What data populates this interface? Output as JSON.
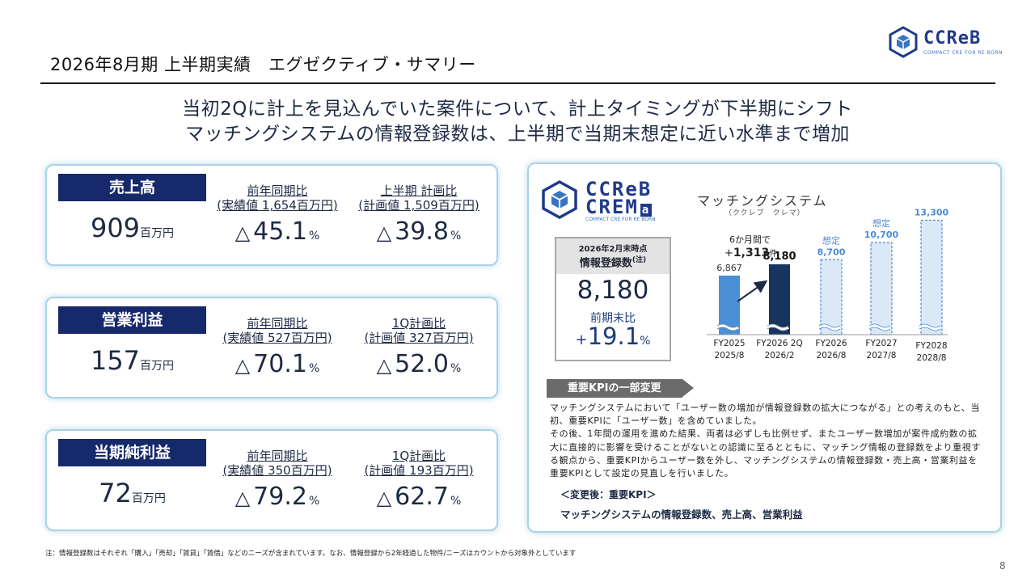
{
  "header": {
    "title": "2026年8月期 上半期実績　エグゼクティブ・サマリー",
    "logo_word": "CCReB",
    "logo_tagline": "COMPACT CRE FOR RE BORN"
  },
  "headline": {
    "line1": "当初2Qに計上を見込んでいた案件について、計上タイミングが下半期にシフト",
    "line2": "マッチングシステムの情報登録数は、上半期で当期末想定に近い水準まで増加"
  },
  "kpis": [
    {
      "label": "売上高",
      "value": "909",
      "unit": "百万円",
      "yoy_label1": "前年同期比",
      "yoy_label2": "(実績値 1,654百万円)",
      "yoy_symbol": "△",
      "yoy_value": "45.1",
      "yoy_unit": "%",
      "plan_label1": "上半期 計画比",
      "plan_label2": "(計画値 1,509百万円)",
      "plan_symbol": "△",
      "plan_value": "39.8",
      "plan_unit": "%"
    },
    {
      "label": "営業利益",
      "value": "157",
      "unit": "百万円",
      "yoy_label1": "前年同期比",
      "yoy_label2": "(実績値 527百万円)",
      "yoy_symbol": "△",
      "yoy_value": "70.1",
      "yoy_unit": "%",
      "plan_label1": "1Q計画比",
      "plan_label2": "(計画値 327百万円)",
      "plan_symbol": "△",
      "plan_value": "52.0",
      "plan_unit": "%"
    },
    {
      "label": "当期純利益",
      "value": "72",
      "unit": "百万円",
      "yoy_label1": "前年同期比",
      "yoy_label2": "(実績値 350百万円)",
      "yoy_symbol": "△",
      "yoy_value": "79.2",
      "yoy_unit": "%",
      "plan_label1": "1Q計画比",
      "plan_label2": "(計画値 193百万円)",
      "plan_symbol": "△",
      "plan_value": "62.7",
      "plan_unit": "%"
    }
  ],
  "panel": {
    "logo_line1": "CCReB",
    "logo_line2": "CREM",
    "logo_line2_small": "a",
    "logo_tagline": "COMPACT CRE FOR RE BORN",
    "system_title": "マッチングシステム",
    "system_reading": "（ククレブ　クレマ）",
    "reg_date": "2026年2月末時点",
    "reg_label": "情報登録数",
    "reg_note": "(注)",
    "reg_value": "8,180",
    "reg_prev_label": "前期末比",
    "reg_growth_sign": "+",
    "reg_growth_value": "19.1",
    "reg_growth_unit": "%",
    "kpi_tag": "重要KPIの一部変更",
    "kpi_body": "マッチングシステムにおいて「ユーザー数の増加が情報登録数の拡大につながる」との考えのもと、当初、重要KPIに「ユーザー数」を含めていました。\nその後、1年間の運用を進めた結果、両者は必ずしも比例せず、またユーザー数増加が案件成約数の拡大に直接的に影響を受けることがないとの認識に至るとともに、マッチング情報の登録数をより重視する観点から、重要KPIからユーザー数を外し、マッチングシステムの情報登録数・売上高・営業利益を重要KPIとして設定の見直しを行いました。",
    "kpi_after_label": "＜変更後：重要KPI＞",
    "kpi_after_value": "マッチングシステムの情報登録数、売上高、営業利益"
  },
  "chart_data": {
    "type": "bar",
    "title": "マッチングシステム",
    "categories": [
      "FY2025\n2025/8",
      "FY2026 2Q\n2026/2",
      "FY2026\n2026/8",
      "FY2027\n2027/8",
      "FY2028\n2028/8"
    ],
    "values": [
      6867,
      8180,
      8700,
      10700,
      13300
    ],
    "value_labels": [
      "6,867",
      "8,180",
      "8,700",
      "10,700",
      "13,300"
    ],
    "bar_kind": [
      "actual",
      "actual",
      "forecast",
      "forecast",
      "forecast"
    ],
    "forecast_label": "想定",
    "annotation_line1": "6か月間で",
    "annotation_sign": "+",
    "annotation_value": "1,313",
    "annotation_unit": "件",
    "ylim": [
      0,
      14000
    ],
    "colors": {
      "actual_first": "#4a90d9",
      "actual_latest": "#17355f",
      "forecast_fill": "#dbe9f7",
      "forecast_stroke": "#4a8ad4",
      "forecast_label": "#4a8ad4"
    }
  },
  "footnote": "注：情報登録数はそれぞれ「購入」「売却」「賃貸」「賃借」などのニーズが含まれています。なお、情報登録から2年経過した物件/ニーズはカウントから対象外としています",
  "page_number": "8"
}
